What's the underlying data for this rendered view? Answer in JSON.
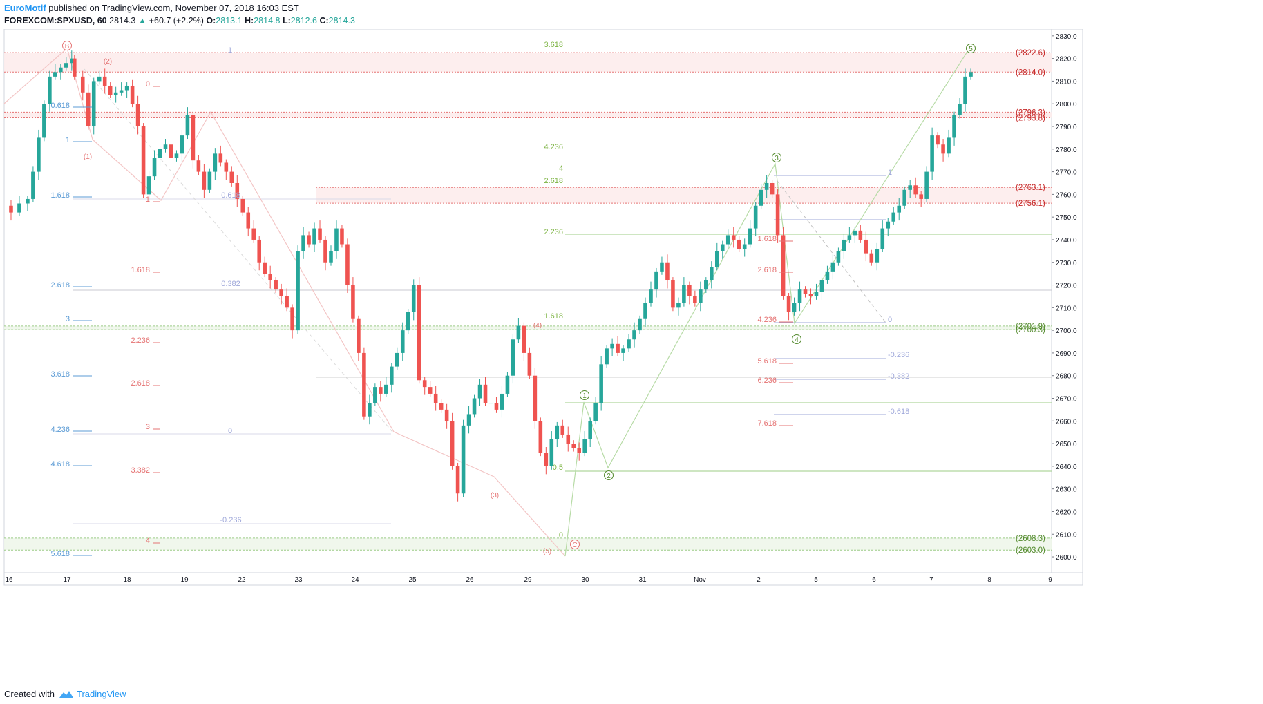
{
  "header": {
    "author": "EuroMotif",
    "published_text": "published on TradingView.com, November 07, 2018 16:03 EST",
    "symbol": "FOREXCOM:SPXUSD, 60",
    "last": "2814.3",
    "change": "+60.7 (+2.2%)",
    "o_label": "O:",
    "o": "2813.1",
    "h_label": "H:",
    "h": "2814.8",
    "l_label": "L:",
    "l": "2812.6",
    "c_label": "C:",
    "c": "2814.3"
  },
  "footer": {
    "created_with": "Created with",
    "brand": "TradingView",
    "logo_icon": "tradingview-logo-icon"
  },
  "colors": {
    "up": "#26a69a",
    "down": "#ef5350",
    "red_zone": "#fdecec",
    "green_zone": "#eef6ea",
    "green_line": "#9ccc86",
    "red_line": "#e57373",
    "blue_fib": "#5b9bd5",
    "purple_fib": "#9fa8da"
  },
  "chart_data": {
    "type": "candlestick",
    "title": "",
    "xlabel": "",
    "ylabel": "",
    "ylim": [
      2593,
      2833
    ],
    "y_ticks": [
      "2600.0",
      "2610.0",
      "2620.0",
      "2630.0",
      "2640.0",
      "2650.0",
      "2660.0",
      "2670.0",
      "2680.0",
      "2690.0",
      "2700.0",
      "2710.0",
      "2720.0",
      "2730.0",
      "2740.0",
      "2750.0",
      "2760.0",
      "2770.0",
      "2780.0",
      "2790.0",
      "2800.0",
      "2810.0",
      "2820.0",
      "2830.0"
    ],
    "x_ticks": [
      "16",
      "17",
      "18",
      "19",
      "22",
      "23",
      "24",
      "25",
      "26",
      "29",
      "30",
      "31",
      "Nov",
      "2",
      "5",
      "6",
      "7",
      "8",
      "9"
    ],
    "close_path": [
      [
        0,
        2755
      ],
      [
        2,
        2752
      ],
      [
        5,
        2756
      ],
      [
        8,
        2758
      ],
      [
        10,
        2770
      ],
      [
        12,
        2785
      ],
      [
        14,
        2800
      ],
      [
        16,
        2812
      ],
      [
        18,
        2814
      ],
      [
        20,
        2816
      ],
      [
        22,
        2818
      ],
      [
        24,
        2820
      ],
      [
        25,
        2812
      ],
      [
        28,
        2805
      ],
      [
        30,
        2790
      ],
      [
        32,
        2810
      ],
      [
        34,
        2812
      ],
      [
        36,
        2808
      ],
      [
        38,
        2804
      ],
      [
        40,
        2805
      ],
      [
        42,
        2806
      ],
      [
        44,
        2808
      ],
      [
        46,
        2800
      ],
      [
        48,
        2790
      ],
      [
        50,
        2760
      ],
      [
        52,
        2768
      ],
      [
        54,
        2776
      ],
      [
        56,
        2780
      ],
      [
        58,
        2782
      ],
      [
        60,
        2776
      ],
      [
        62,
        2778
      ],
      [
        64,
        2786
      ],
      [
        66,
        2795
      ],
      [
        68,
        2775
      ],
      [
        70,
        2770
      ],
      [
        72,
        2762
      ],
      [
        74,
        2770
      ],
      [
        76,
        2778
      ],
      [
        78,
        2774
      ],
      [
        80,
        2770
      ],
      [
        82,
        2765
      ],
      [
        84,
        2758
      ],
      [
        86,
        2752
      ],
      [
        88,
        2745
      ],
      [
        90,
        2740
      ],
      [
        92,
        2730
      ],
      [
        94,
        2725
      ],
      [
        96,
        2722
      ],
      [
        98,
        2718
      ],
      [
        100,
        2715
      ],
      [
        102,
        2710
      ],
      [
        104,
        2700
      ],
      [
        106,
        2735
      ],
      [
        108,
        2742
      ],
      [
        110,
        2738
      ],
      [
        112,
        2745
      ],
      [
        114,
        2740
      ],
      [
        116,
        2730
      ],
      [
        118,
        2735
      ],
      [
        120,
        2745
      ],
      [
        122,
        2738
      ],
      [
        124,
        2720
      ],
      [
        126,
        2705
      ],
      [
        128,
        2690
      ],
      [
        130,
        2662
      ],
      [
        132,
        2668
      ],
      [
        134,
        2675
      ],
      [
        136,
        2672
      ],
      [
        138,
        2676
      ],
      [
        140,
        2684
      ],
      [
        142,
        2690
      ],
      [
        144,
        2700
      ],
      [
        146,
        2708
      ],
      [
        148,
        2720
      ],
      [
        150,
        2678
      ],
      [
        152,
        2675
      ],
      [
        154,
        2672
      ],
      [
        156,
        2668
      ],
      [
        158,
        2665
      ],
      [
        160,
        2660
      ],
      [
        162,
        2640
      ],
      [
        164,
        2628
      ],
      [
        166,
        2658
      ],
      [
        168,
        2663
      ],
      [
        170,
        2670
      ],
      [
        172,
        2676
      ],
      [
        174,
        2668
      ],
      [
        176,
        2668
      ],
      [
        178,
        2665
      ],
      [
        180,
        2672
      ],
      [
        182,
        2680
      ],
      [
        184,
        2696
      ],
      [
        186,
        2702
      ],
      [
        188,
        2690
      ],
      [
        190,
        2680
      ],
      [
        192,
        2660
      ],
      [
        194,
        2646
      ],
      [
        196,
        2640
      ],
      [
        198,
        2652
      ],
      [
        200,
        2658
      ],
      [
        202,
        2654
      ],
      [
        204,
        2650
      ],
      [
        206,
        2648
      ],
      [
        208,
        2646
      ],
      [
        210,
        2652
      ],
      [
        212,
        2660
      ],
      [
        214,
        2668
      ],
      [
        216,
        2685
      ],
      [
        218,
        2692
      ],
      [
        220,
        2694
      ],
      [
        222,
        2690
      ],
      [
        224,
        2692
      ],
      [
        226,
        2696
      ],
      [
        228,
        2700
      ],
      [
        230,
        2705
      ],
      [
        232,
        2712
      ],
      [
        234,
        2718
      ],
      [
        236,
        2726
      ],
      [
        238,
        2730
      ],
      [
        240,
        2722
      ],
      [
        242,
        2710
      ],
      [
        244,
        2712
      ],
      [
        246,
        2720
      ],
      [
        248,
        2715
      ],
      [
        250,
        2712
      ],
      [
        252,
        2718
      ],
      [
        254,
        2722
      ],
      [
        256,
        2728
      ],
      [
        258,
        2735
      ],
      [
        260,
        2738
      ],
      [
        262,
        2742
      ],
      [
        264,
        2740
      ],
      [
        266,
        2736
      ],
      [
        268,
        2738
      ],
      [
        270,
        2745
      ],
      [
        272,
        2755
      ],
      [
        274,
        2762
      ],
      [
        276,
        2765
      ],
      [
        278,
        2760
      ],
      [
        280,
        2742
      ],
      [
        282,
        2715
      ],
      [
        284,
        2708
      ],
      [
        286,
        2712
      ],
      [
        288,
        2718
      ],
      [
        290,
        2716
      ],
      [
        292,
        2715
      ],
      [
        294,
        2717
      ],
      [
        296,
        2722
      ],
      [
        298,
        2726
      ],
      [
        300,
        2730
      ],
      [
        302,
        2735
      ],
      [
        304,
        2740
      ],
      [
        306,
        2742
      ],
      [
        308,
        2744
      ],
      [
        310,
        2740
      ],
      [
        312,
        2734
      ],
      [
        314,
        2730
      ],
      [
        316,
        2736
      ],
      [
        318,
        2745
      ],
      [
        320,
        2748
      ],
      [
        322,
        2752
      ],
      [
        324,
        2755
      ],
      [
        326,
        2762
      ],
      [
        328,
        2764
      ],
      [
        330,
        2760
      ],
      [
        332,
        2758
      ],
      [
        334,
        2770
      ],
      [
        336,
        2786
      ],
      [
        338,
        2782
      ],
      [
        340,
        2778
      ],
      [
        342,
        2785
      ],
      [
        344,
        2795
      ],
      [
        346,
        2800
      ],
      [
        348,
        2812
      ],
      [
        350,
        2814
      ]
    ],
    "zones": [
      {
        "label": "(2822.6)",
        "from": 2814.0,
        "to": 2822.6,
        "color": "red"
      },
      {
        "label": "(2814.0)",
        "from": 2814.0,
        "to": 2814.0,
        "color": "red"
      },
      {
        "label": "(2796.3)",
        "from": 2793.8,
        "to": 2796.3,
        "color": "red"
      },
      {
        "label": "(2793.8)",
        "from": 2793.8,
        "to": 2793.8,
        "color": "red"
      },
      {
        "label": "(2763.1)",
        "from": 2756.1,
        "to": 2763.1,
        "color": "red"
      },
      {
        "label": "(2756.1)",
        "from": 2756.1,
        "to": 2756.1,
        "color": "red"
      },
      {
        "label": "(2701.9)",
        "from": 2700.3,
        "to": 2701.9,
        "color": "green"
      },
      {
        "label": "(2700.3)",
        "from": 2700.3,
        "to": 2700.3,
        "color": "green"
      },
      {
        "label": "(2608.3)",
        "from": 2603.0,
        "to": 2608.3,
        "color": "green"
      },
      {
        "label": "(2603.0)",
        "from": 2603.0,
        "to": 2603.0,
        "color": "green"
      }
    ],
    "wave_labels": [
      "B",
      "(1)",
      "(2)",
      "(3)",
      "(4)",
      "(5)",
      "C",
      "1",
      "2",
      "3",
      "4",
      "5"
    ],
    "blue_fib_labels": [
      "0.618",
      "1",
      "1.618",
      "2.618",
      "3",
      "3.618",
      "4.236",
      "4.618",
      "5.618"
    ],
    "red_fib_labels": [
      "0",
      "1",
      "1.618",
      "2.236",
      "2.618",
      "3",
      "3.382",
      "4"
    ],
    "purple_fib_labels": [
      "1",
      "0.382",
      "0",
      "-0.236",
      "0.618"
    ],
    "green_fib_labels": [
      "3.618",
      "4.236",
      "4",
      "2.618",
      "2.236",
      "1.618",
      "0.5",
      "0"
    ],
    "right_red_fib_labels": [
      "1.618",
      "2.618",
      "4.236",
      "5.618",
      "6.236",
      "7.618"
    ],
    "right_purple_fib_labels": [
      "1",
      "0",
      "-0.236",
      "-0.382",
      "-0.618"
    ]
  }
}
